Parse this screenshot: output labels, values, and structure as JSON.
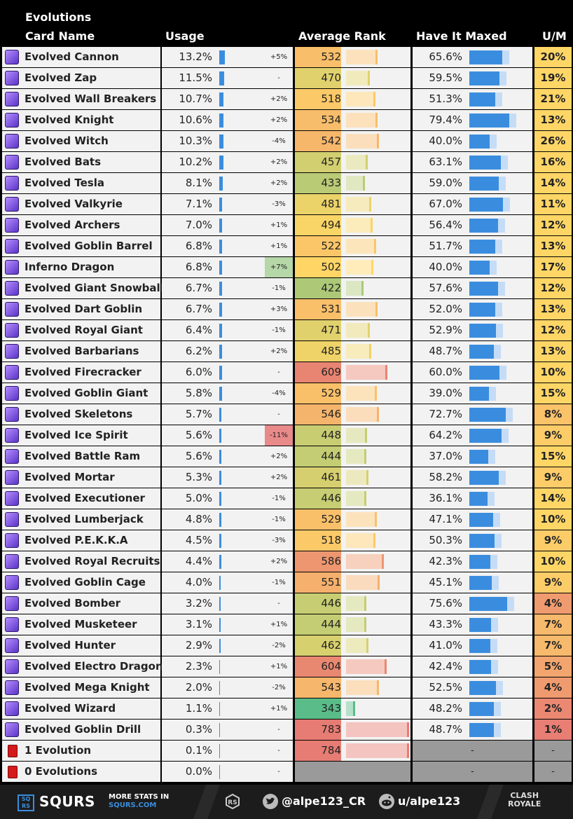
{
  "header": {
    "title": "Evolutions",
    "col_name": "Card Name",
    "col_usage": "Usage",
    "col_rank": "Average Rank",
    "col_maxed": "Have It Maxed",
    "col_um": "U/M"
  },
  "chart_data": {
    "type": "table",
    "title": "Evolutions",
    "columns": [
      "Card Name",
      "Usage",
      "Usage Change",
      "Average Rank",
      "Have It Maxed",
      "U/M"
    ],
    "rows": [
      {
        "name": "Evolved Cannon",
        "usage": "13.2%",
        "usage_val": 13.2,
        "change": "+5%",
        "rank": "532",
        "rank_val": 532,
        "maxed": "65.6%",
        "maxed_val": 65.6,
        "um": "20%",
        "um_val": 20
      },
      {
        "name": "Evolved Zap",
        "usage": "11.5%",
        "usage_val": 11.5,
        "change": "-",
        "rank": "470",
        "rank_val": 470,
        "maxed": "59.5%",
        "maxed_val": 59.5,
        "um": "19%",
        "um_val": 19
      },
      {
        "name": "Evolved Wall Breakers",
        "usage": "10.7%",
        "usage_val": 10.7,
        "change": "+2%",
        "rank": "518",
        "rank_val": 518,
        "maxed": "51.3%",
        "maxed_val": 51.3,
        "um": "21%",
        "um_val": 21
      },
      {
        "name": "Evolved Knight",
        "usage": "10.6%",
        "usage_val": 10.6,
        "change": "+2%",
        "rank": "534",
        "rank_val": 534,
        "maxed": "79.4%",
        "maxed_val": 79.4,
        "um": "13%",
        "um_val": 13
      },
      {
        "name": "Evolved Witch",
        "usage": "10.3%",
        "usage_val": 10.3,
        "change": "-4%",
        "rank": "542",
        "rank_val": 542,
        "maxed": "40.0%",
        "maxed_val": 40.0,
        "um": "26%",
        "um_val": 26
      },
      {
        "name": "Evolved Bats",
        "usage": "10.2%",
        "usage_val": 10.2,
        "change": "+2%",
        "rank": "457",
        "rank_val": 457,
        "maxed": "63.1%",
        "maxed_val": 63.1,
        "um": "16%",
        "um_val": 16
      },
      {
        "name": "Evolved Tesla",
        "usage": "8.1%",
        "usage_val": 8.1,
        "change": "+2%",
        "rank": "433",
        "rank_val": 433,
        "maxed": "59.0%",
        "maxed_val": 59.0,
        "um": "14%",
        "um_val": 14
      },
      {
        "name": "Evolved Valkyrie",
        "usage": "7.1%",
        "usage_val": 7.1,
        "change": "-3%",
        "rank": "481",
        "rank_val": 481,
        "maxed": "67.0%",
        "maxed_val": 67.0,
        "um": "11%",
        "um_val": 11
      },
      {
        "name": "Evolved Archers",
        "usage": "7.0%",
        "usage_val": 7.0,
        "change": "+1%",
        "rank": "494",
        "rank_val": 494,
        "maxed": "56.4%",
        "maxed_val": 56.4,
        "um": "12%",
        "um_val": 12
      },
      {
        "name": "Evolved Goblin Barrel",
        "usage": "6.8%",
        "usage_val": 6.8,
        "change": "+1%",
        "rank": "522",
        "rank_val": 522,
        "maxed": "51.7%",
        "maxed_val": 51.7,
        "um": "13%",
        "um_val": 13
      },
      {
        "name": "Inferno Dragon",
        "usage": "6.8%",
        "usage_val": 6.8,
        "change": "+7%",
        "rank": "502",
        "rank_val": 502,
        "maxed": "40.0%",
        "maxed_val": 40.0,
        "um": "17%",
        "um_val": 17
      },
      {
        "name": "Evolved Giant Snowball",
        "usage": "6.7%",
        "usage_val": 6.7,
        "change": "-1%",
        "rank": "422",
        "rank_val": 422,
        "maxed": "57.6%",
        "maxed_val": 57.6,
        "um": "12%",
        "um_val": 12
      },
      {
        "name": "Evolved Dart Goblin",
        "usage": "6.7%",
        "usage_val": 6.7,
        "change": "+3%",
        "rank": "531",
        "rank_val": 531,
        "maxed": "52.0%",
        "maxed_val": 52.0,
        "um": "13%",
        "um_val": 13
      },
      {
        "name": "Evolved Royal Giant",
        "usage": "6.4%",
        "usage_val": 6.4,
        "change": "-1%",
        "rank": "471",
        "rank_val": 471,
        "maxed": "52.9%",
        "maxed_val": 52.9,
        "um": "12%",
        "um_val": 12
      },
      {
        "name": "Evolved Barbarians",
        "usage": "6.2%",
        "usage_val": 6.2,
        "change": "+2%",
        "rank": "485",
        "rank_val": 485,
        "maxed": "48.7%",
        "maxed_val": 48.7,
        "um": "13%",
        "um_val": 13
      },
      {
        "name": "Evolved Firecracker",
        "usage": "6.0%",
        "usage_val": 6.0,
        "change": "-",
        "rank": "609",
        "rank_val": 609,
        "maxed": "60.0%",
        "maxed_val": 60.0,
        "um": "10%",
        "um_val": 10
      },
      {
        "name": "Evolved Goblin Giant",
        "usage": "5.8%",
        "usage_val": 5.8,
        "change": "-4%",
        "rank": "529",
        "rank_val": 529,
        "maxed": "39.0%",
        "maxed_val": 39.0,
        "um": "15%",
        "um_val": 15
      },
      {
        "name": "Evolved Skeletons",
        "usage": "5.7%",
        "usage_val": 5.7,
        "change": "-",
        "rank": "546",
        "rank_val": 546,
        "maxed": "72.7%",
        "maxed_val": 72.7,
        "um": "8%",
        "um_val": 8
      },
      {
        "name": "Evolved Ice Spirit",
        "usage": "5.6%",
        "usage_val": 5.6,
        "change": "-11%",
        "rank": "448",
        "rank_val": 448,
        "maxed": "64.2%",
        "maxed_val": 64.2,
        "um": "9%",
        "um_val": 9
      },
      {
        "name": "Evolved Battle Ram",
        "usage": "5.6%",
        "usage_val": 5.6,
        "change": "+2%",
        "rank": "444",
        "rank_val": 444,
        "maxed": "37.0%",
        "maxed_val": 37.0,
        "um": "15%",
        "um_val": 15
      },
      {
        "name": "Evolved Mortar",
        "usage": "5.3%",
        "usage_val": 5.3,
        "change": "+2%",
        "rank": "461",
        "rank_val": 461,
        "maxed": "58.2%",
        "maxed_val": 58.2,
        "um": "9%",
        "um_val": 9
      },
      {
        "name": "Evolved Executioner",
        "usage": "5.0%",
        "usage_val": 5.0,
        "change": "-1%",
        "rank": "446",
        "rank_val": 446,
        "maxed": "36.1%",
        "maxed_val": 36.1,
        "um": "14%",
        "um_val": 14
      },
      {
        "name": "Evolved Lumberjack",
        "usage": "4.8%",
        "usage_val": 4.8,
        "change": "-1%",
        "rank": "529",
        "rank_val": 529,
        "maxed": "47.1%",
        "maxed_val": 47.1,
        "um": "10%",
        "um_val": 10
      },
      {
        "name": "Evolved P.E.K.K.A",
        "usage": "4.5%",
        "usage_val": 4.5,
        "change": "-3%",
        "rank": "518",
        "rank_val": 518,
        "maxed": "50.3%",
        "maxed_val": 50.3,
        "um": "9%",
        "um_val": 9
      },
      {
        "name": "Evolved Royal Recruits",
        "usage": "4.4%",
        "usage_val": 4.4,
        "change": "+2%",
        "rank": "586",
        "rank_val": 586,
        "maxed": "42.3%",
        "maxed_val": 42.3,
        "um": "10%",
        "um_val": 10
      },
      {
        "name": "Evolved Goblin Cage",
        "usage": "4.0%",
        "usage_val": 4.0,
        "change": "-1%",
        "rank": "551",
        "rank_val": 551,
        "maxed": "45.1%",
        "maxed_val": 45.1,
        "um": "9%",
        "um_val": 9
      },
      {
        "name": "Evolved Bomber",
        "usage": "3.2%",
        "usage_val": 3.2,
        "change": "-",
        "rank": "446",
        "rank_val": 446,
        "maxed": "75.6%",
        "maxed_val": 75.6,
        "um": "4%",
        "um_val": 4
      },
      {
        "name": "Evolved Musketeer",
        "usage": "3.1%",
        "usage_val": 3.1,
        "change": "+1%",
        "rank": "444",
        "rank_val": 444,
        "maxed": "43.3%",
        "maxed_val": 43.3,
        "um": "7%",
        "um_val": 7
      },
      {
        "name": "Evolved Hunter",
        "usage": "2.9%",
        "usage_val": 2.9,
        "change": "-2%",
        "rank": "462",
        "rank_val": 462,
        "maxed": "41.0%",
        "maxed_val": 41.0,
        "um": "7%",
        "um_val": 7
      },
      {
        "name": "Evolved Electro Dragon",
        "usage": "2.3%",
        "usage_val": 2.3,
        "change": "+1%",
        "rank": "604",
        "rank_val": 604,
        "maxed": "42.4%",
        "maxed_val": 42.4,
        "um": "5%",
        "um_val": 5
      },
      {
        "name": "Evolved Mega Knight",
        "usage": "2.0%",
        "usage_val": 2.0,
        "change": "-2%",
        "rank": "543",
        "rank_val": 543,
        "maxed": "52.5%",
        "maxed_val": 52.5,
        "um": "4%",
        "um_val": 4
      },
      {
        "name": "Evolved Wizard",
        "usage": "1.1%",
        "usage_val": 1.1,
        "change": "+1%",
        "rank": "343",
        "rank_val": 343,
        "maxed": "48.2%",
        "maxed_val": 48.2,
        "um": "2%",
        "um_val": 2
      },
      {
        "name": "Evolved Goblin Drill",
        "usage": "0.3%",
        "usage_val": 0.3,
        "change": "-",
        "rank": "783",
        "rank_val": 783,
        "maxed": "48.7%",
        "maxed_val": 48.7,
        "um": "1%",
        "um_val": 1
      },
      {
        "name": "1 Evolution",
        "usage": "0.1%",
        "usage_val": 0.1,
        "change": "-",
        "rank": "784",
        "rank_val": 784,
        "maxed": "-",
        "maxed_val": null,
        "um": "-",
        "um_val": null,
        "special": true
      },
      {
        "name": "0 Evolutions",
        "usage": "0.0%",
        "usage_val": 0.0,
        "change": "-",
        "rank": null,
        "rank_val": null,
        "maxed": "-",
        "maxed_val": null,
        "um": "-",
        "um_val": null,
        "special": true
      }
    ]
  },
  "footer": {
    "brand": "SQURS",
    "logo_text": "SQ RS",
    "more_line1": "MORE STATS IN",
    "more_line2": "SQURS.COM",
    "twitter": "@alpe123_CR",
    "reddit": "u/alpe123",
    "game_line1": "CLASH",
    "game_line2": "ROYALE"
  },
  "colors": {
    "usage_bar": "#3a8dde",
    "maxed_bar": "#3a8dde",
    "maxed_bg": "#c5dcf7",
    "change_pos": "#b6d7a8",
    "change_neg": "#e8898a"
  }
}
